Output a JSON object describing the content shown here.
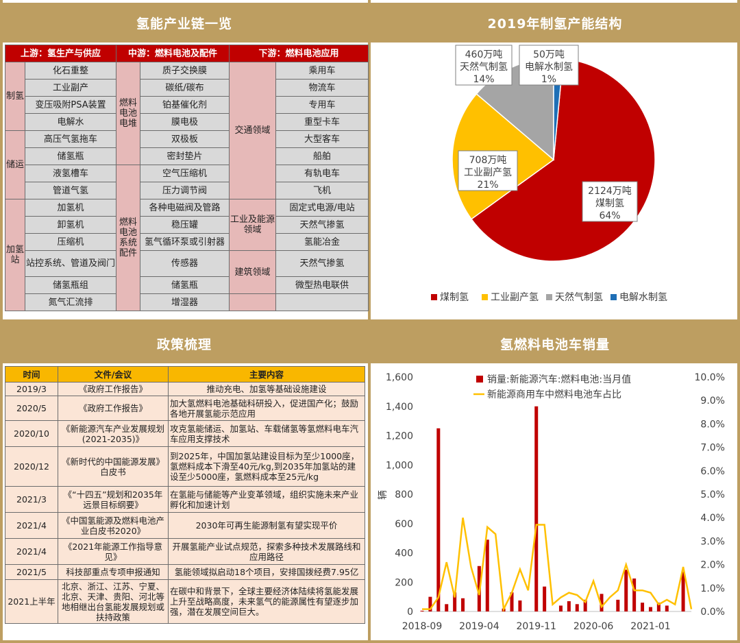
{
  "panels": {
    "chain_title": "氢能产业链一览",
    "pie_title": "2019年制氢产能结构",
    "policy_title": "政策梳理",
    "bar_title": "氢燃料电池车销量"
  },
  "chain": {
    "headers": [
      "上游：氢生产与供应",
      "中游：燃料电池及配件",
      "下游：燃料电池应用"
    ],
    "rows": [
      {
        "up_cat": "制氢",
        "up_cat_span": 4,
        "up_item": "化石重整",
        "mid_cat": "燃料电池电堆",
        "mid_cat_span": 6,
        "mid_item": "质子交换膜",
        "down_cat": "交通领域",
        "down_cat_span": 8,
        "down_item": "乘用车"
      },
      {
        "up_item": "工业副产",
        "mid_item": "碳纸/碳布",
        "down_item": "物流车"
      },
      {
        "up_item": "变压吸附PSA装置",
        "mid_item": "铂基催化剂",
        "down_item": "专用车"
      },
      {
        "up_item": "电解水",
        "mid_item": "膜电极",
        "down_item": "重型卡车"
      },
      {
        "up_cat": "储运",
        "up_cat_span": 4,
        "up_item": "高压气氢拖车",
        "mid_item": "双极板",
        "down_item": "大型客车"
      },
      {
        "up_item": "储氢瓶",
        "mid_item": "密封垫片",
        "down_item": "船舶"
      },
      {
        "up_item": "液氢槽车",
        "mid_cat": "燃料电池系统配件",
        "mid_cat_span": 9,
        "mid_item": "空气压缩机",
        "down_item": "有轨电车"
      },
      {
        "up_item": "管道气氢",
        "mid_item": "压力调节阀",
        "down_item": "飞机"
      },
      {
        "up_cat": "加氢站",
        "up_cat_span": 7,
        "up_item": "加氢机",
        "mid_item": "各种电磁阀及管路",
        "down_cat": "工业及能源领域",
        "down_cat_span": 3,
        "down_item": "固定式电源/电站"
      },
      {
        "up_item": "卸氢机",
        "mid_item": "稳压罐",
        "down_item": "天然气掺氢"
      },
      {
        "up_item": "压缩机",
        "mid_item": "氢气循环泵或引射器",
        "down_item": "氢能冶金"
      },
      {
        "up_item": "站控系统、管道及阀门",
        "mid_item": "传感器",
        "down_cat": "建筑领域",
        "down_cat_span": 2,
        "down_item": "天然气掺氢",
        "tall": true
      },
      {
        "up_item": "储氢瓶组",
        "mid_item": "储氢瓶",
        "down_item": "微型热电联供"
      },
      {
        "up_item": "氮气汇流排",
        "mid_item": "增湿器",
        "down_cat": "",
        "down_cat_span": 1,
        "down_item": ""
      }
    ]
  },
  "policy": {
    "headers": [
      "时间",
      "文件/会议",
      "主要内容"
    ],
    "rows": [
      {
        "time": "2019/3",
        "doc": "《政府工作报告》",
        "content": "推动充电、加氢等基础设施建设",
        "align": "c"
      },
      {
        "time": "2020/5",
        "doc": "《政府工作报告》",
        "content": "加大氢燃料电池基础科研投入，促进国产化；鼓励各地开展氢能示范应用",
        "align": "l"
      },
      {
        "time": "2020/10",
        "doc": "《新能源汽车产业发展规划(2021-2035)》",
        "content": "攻克氢能储运、加氢站、车载储氢等氢燃料电车汽车应用支撑技术",
        "align": "l"
      },
      {
        "time": "2020/12",
        "doc": "《新时代的中国能源发展》白皮书",
        "content": "到2025年，中国加氢站建设目标为至少1000座，氢燃料成本下滑至40元/kg,到2035年加氢站的建设至少5000座，氢燃料成本至25元/kg",
        "align": "l"
      },
      {
        "time": "2021/3",
        "doc": "《“十四五”规划和2035年远景目标纲要》",
        "content": "在氢能与储能等产业变革领域，组织实施未来产业孵化和加速计划",
        "align": "l"
      },
      {
        "time": "2021/4",
        "doc": "《中国氢能源及燃料电池产业白皮书2020》",
        "content": "2030年可再生能源制氢有望实现平价",
        "align": "c"
      },
      {
        "time": "2021/4",
        "doc": "《2021年能源工作指导意见》",
        "content": "开展氢能产业试点规范，探索多种技术发展路线和应用路径",
        "align": "c"
      },
      {
        "time": "2021/5",
        "doc": "科技部重点专项申报通知",
        "content": "氢能领域拟启动18个项目，安排国拨经费7.95亿",
        "align": "c"
      },
      {
        "time": "2021上半年",
        "doc": "北京、浙江、江苏、宁夏、北京、天津、贵阳、河北等地相继出台氢能发展规划或扶持政策",
        "content": "在碳中和背景下，全球主要经济体陆续将氢能发展上升至战略高度，未来氢气的能源属性有望逐步加强，潜在发展空间巨大。",
        "align": "l"
      }
    ]
  },
  "chart_data": [
    {
      "type": "pie",
      "title": "2019年制氢产能结构",
      "slices": [
        {
          "name": "煤制氢",
          "value": 2124,
          "label_line1": "2124万吨",
          "label_line2": "煤制氢",
          "label_line3": "64%",
          "color": "#c00000"
        },
        {
          "name": "工业副产氢",
          "value": 708,
          "label_line1": "708万吨",
          "label_line2": "工业副产氢",
          "label_line3": "21%",
          "color": "#ffc000"
        },
        {
          "name": "天然气制氢",
          "value": 460,
          "label_line1": "460万吨",
          "label_line2": "天然气制氢",
          "label_line3": "14%",
          "color": "#a5a5a5"
        },
        {
          "name": "电解水制氢",
          "value": 50,
          "label_line1": "50万吨",
          "label_line2": "电解水制氢",
          "label_line3": "1%",
          "color": "#1f6fb6"
        }
      ],
      "legend_position": "bottom"
    },
    {
      "type": "bar",
      "title": "氢燃料电池车销量",
      "ylabel": "辆",
      "ylim": [
        0,
        1600
      ],
      "y_ticks": [
        "0",
        "200",
        "400",
        "600",
        "800",
        "1,000",
        "1,200",
        "1,400",
        "1,600"
      ],
      "y2lim": [
        0,
        10
      ],
      "y2_ticks": [
        "0.0%",
        "1.0%",
        "2.0%",
        "3.0%",
        "4.0%",
        "5.0%",
        "6.0%",
        "7.0%",
        "8.0%",
        "9.0%",
        "10.0%"
      ],
      "x_tick_labels": [
        {
          "label": "2018-09",
          "index": 0
        },
        {
          "label": "2019-04",
          "index": 7
        },
        {
          "label": "2019-11",
          "index": 14
        },
        {
          "label": "2020-06",
          "index": 21
        },
        {
          "label": "2021-01",
          "index": 28
        }
      ],
      "series": [
        {
          "name": "销量:新能源汽车:燃料电池:当月值",
          "kind": "bar",
          "color": "#c00000",
          "values": [
            5,
            100,
            1250,
            50,
            130,
            90,
            0,
            310,
            490,
            0,
            20,
            130,
            75,
            0,
            1400,
            170,
            0,
            40,
            70,
            50,
            80,
            0,
            120,
            0,
            80,
            285,
            225,
            60,
            30,
            60,
            40,
            0,
            270,
            0
          ]
        },
        {
          "name": "新能源商用车中燃料电池车占比",
          "kind": "line",
          "color": "#ffc000",
          "axis": "right",
          "values": [
            0.1,
            0.1,
            0.6,
            2.1,
            0.6,
            4.0,
            1.9,
            0.7,
            3.6,
            3.3,
            0.1,
            0.8,
            1.8,
            0.9,
            3.7,
            3.7,
            0.3,
            0.6,
            0.8,
            0.7,
            0.4,
            1.3,
            0.2,
            0.6,
            0.9,
            2.0,
            0.9,
            0.9,
            0.8,
            0.3,
            0.5,
            0.3,
            1.9,
            0.1
          ]
        }
      ],
      "legend_position": "top"
    }
  ]
}
